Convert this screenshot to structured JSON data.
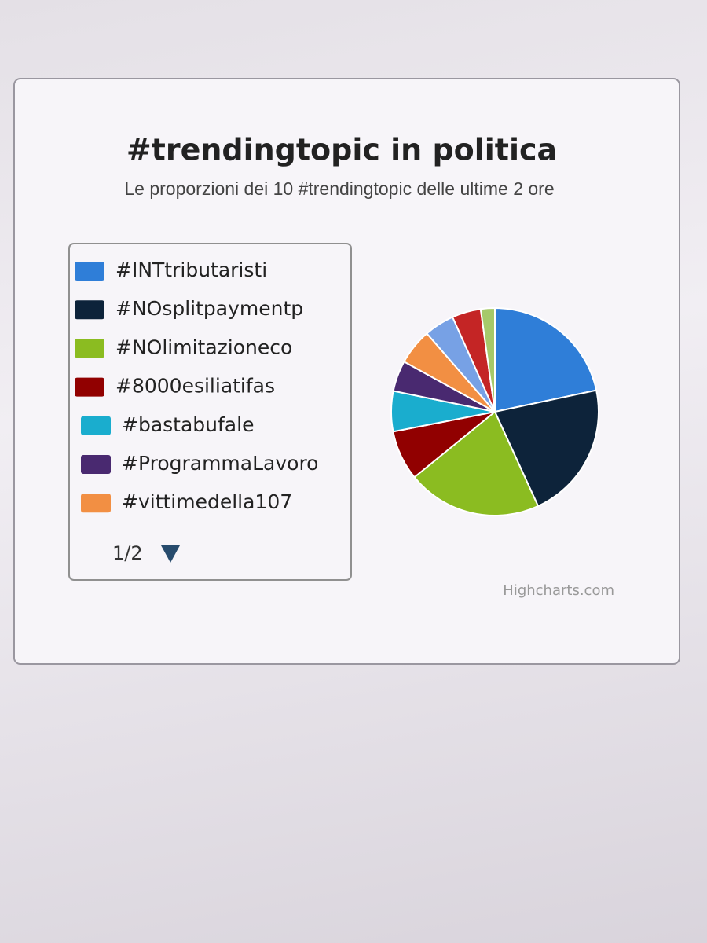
{
  "chart_data": {
    "type": "pie",
    "title": "#trendingtopic in politica",
    "subtitle": "Le proporzioni dei 10 #trendingtopic delle ultime 2 ore",
    "categories": [
      "#INTtributaristi",
      "#NOsplitpaymentp",
      "#NOlimitazioneco",
      "#8000esiliatifas",
      "#bastabufale",
      "#ProgrammaLavoro",
      "#vittimedella107",
      null,
      null,
      null
    ],
    "values": [
      21.7,
      21.5,
      21,
      7.8,
      6.3,
      4.8,
      5.6,
      4.7,
      4.5,
      2.2
    ],
    "colors": [
      "#2f7ed8",
      "#0d233a",
      "#8bbc21",
      "#910000",
      "#1aadce",
      "#492970",
      "#f28f43",
      "#77a1e5",
      "#c42525",
      "#a6c96a"
    ],
    "legend_pager": "1/2",
    "credits": "Highcharts.com"
  }
}
